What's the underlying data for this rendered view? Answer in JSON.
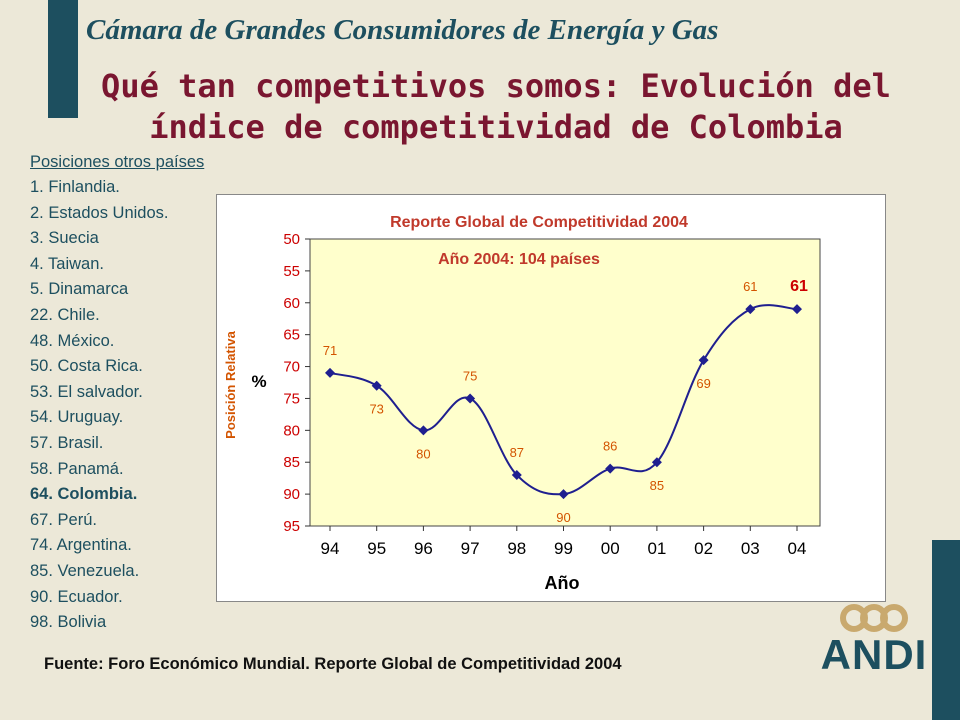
{
  "header": {
    "title": "Cámara  de Grandes Consumidores de Energía y Gas"
  },
  "main_title": "Qué tan competitivos somos: Evolución del índice de competitividad de Colombia",
  "countries": {
    "title": "Posiciones otros países",
    "items": [
      "1. Finlandia.",
      "2. Estados Unidos.",
      "3. Suecia",
      "4. Taiwan.",
      "5. Dinamarca",
      "22. Chile.",
      "48. México.",
      "50. Costa Rica.",
      "53. El salvador.",
      "54. Uruguay.",
      "57. Brasil.",
      "58. Panamá.",
      "64. Colombia.",
      "67. Perú.",
      "74. Argentina.",
      "85. Venezuela.",
      "90. Ecuador.",
      "98. Bolivia"
    ],
    "highlight_index": 12
  },
  "chart_data": {
    "type": "line",
    "title": "Reporte Global de Competitividad 2004",
    "subtitle": "Año 2004: 104 países",
    "xlabel": "Año",
    "ylabel": "Posición Relativa",
    "ylabel_unit": "%",
    "y_axis_inverted": true,
    "ylim": [
      50,
      95
    ],
    "yticks": [
      50,
      55,
      60,
      65,
      70,
      75,
      80,
      85,
      90,
      95
    ],
    "categories": [
      "94",
      "95",
      "96",
      "97",
      "98",
      "99",
      "00",
      "01",
      "02",
      "03",
      "04"
    ],
    "series": [
      {
        "values": [
          71,
          73,
          80,
          75,
          87,
          90,
          86,
          85,
          69,
          61,
          61
        ],
        "color": "#1f1f8f",
        "smooth": true
      }
    ],
    "data_labels": [
      "71",
      "73",
      "80",
      "75",
      "87",
      "90",
      "86",
      "85",
      "69",
      "61",
      "61"
    ],
    "plot_background": "#ffffcc",
    "title_color": "#c0392b",
    "label_color": "#d35400",
    "last_label_color": "#cc0000"
  },
  "source": "Fuente: Foro Económico Mundial. Reporte Global de Competitividad 2004",
  "logo": {
    "text": "ANDI",
    "color": "#1d4f5f",
    "accent": "#c9a96e"
  }
}
